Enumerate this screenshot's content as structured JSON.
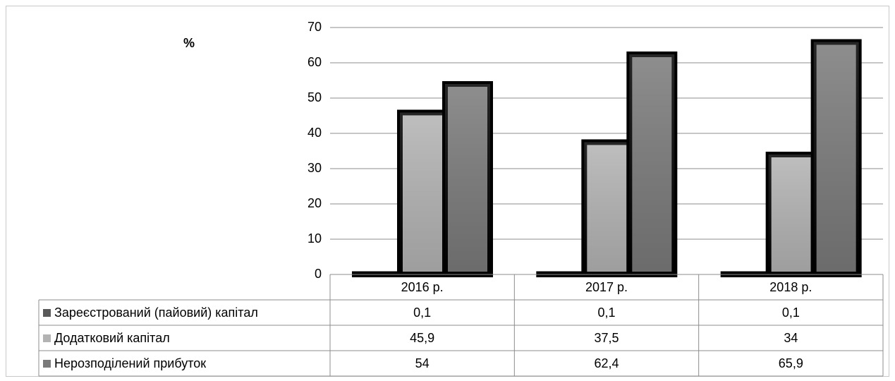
{
  "chart_data": {
    "type": "bar",
    "y_label": "%",
    "categories": [
      "2016 р.",
      "2017 р.",
      "2018 р."
    ],
    "series": [
      {
        "name": "Зареєстрований (пайовий) капітал",
        "color": "#595959",
        "values": [
          0.1,
          0.1,
          0.1
        ],
        "value_labels": [
          "0,1",
          "0,1",
          "0,1"
        ]
      },
      {
        "name": "Додатковий капітал",
        "color": "#b3b3b3",
        "values": [
          45.9,
          37.5,
          34
        ],
        "value_labels": [
          "45,9",
          "37,5",
          "34"
        ]
      },
      {
        "name": "Нерозподілений прибуток",
        "color": "#7a7a7a",
        "values": [
          54,
          62.4,
          65.9
        ],
        "value_labels": [
          "54",
          "62,4",
          "65,9"
        ]
      }
    ],
    "ylim": [
      0,
      70
    ],
    "yticks": [
      0,
      10,
      20,
      30,
      40,
      50,
      60,
      70
    ],
    "grid": true,
    "data_table": true
  }
}
